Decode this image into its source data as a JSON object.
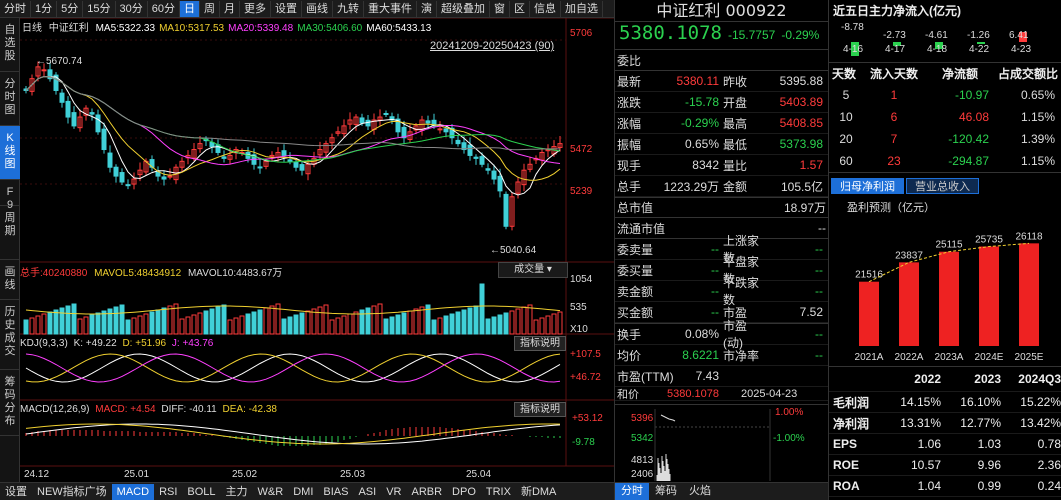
{
  "toolbar": {
    "items": [
      "分时",
      "1分",
      "5分",
      "15分",
      "30分",
      "60分",
      "日",
      "周",
      "月",
      "更多",
      "设置",
      "画线",
      "九转",
      "重大事件",
      "演",
      "超级叠加",
      "窗",
      "区",
      "信息",
      "加自选"
    ],
    "active_index": 6
  },
  "vtabs": [
    {
      "label": "自选股",
      "active": false
    },
    {
      "label": "分时图",
      "active": false
    },
    {
      "label": "K线图",
      "active": true
    },
    {
      "label": "F9",
      "active": false
    },
    {
      "label": "周期",
      "active": false
    },
    {
      "label": "画线",
      "active": false
    },
    {
      "label": "历史成交",
      "active": false
    },
    {
      "label": "筹码分布",
      "active": false
    }
  ],
  "main": {
    "period": "日线",
    "name": "中证红利",
    "ma": [
      {
        "label": "MA5:",
        "value": "5322.33",
        "color": "#ffffff"
      },
      {
        "label": "MA10:",
        "value": "5317.53",
        "color": "#f0d030"
      },
      {
        "label": "MA20:",
        "value": "5339.48",
        "color": "#ff40ff"
      },
      {
        "label": "MA30:",
        "value": "5406.60",
        "color": "#2bd14f"
      },
      {
        "label": "MA60:",
        "value": "5433.13",
        "color": "#ffffff"
      }
    ],
    "range_label": "20241209-20250423 (90)",
    "hi_marker": "5670.74",
    "lo_marker": "5040.64",
    "y_labels": [
      "5706",
      "5472",
      "5239"
    ],
    "vol_header": {
      "label": "总手:",
      "value": "40240880",
      "mavol5_label": "MAVOL5:",
      "mavol5": "48434912",
      "mavol10_label": "MAVOL10:",
      "mavol10": "4483.67万"
    },
    "vol_dropdown": "成交量",
    "vol_y": [
      "1054",
      "535",
      "X10"
    ],
    "kdj_header": {
      "label": "KDJ(9,3,3)",
      "k": "K: +49.22",
      "d": "D: +51.96",
      "j": "J: +43.76"
    },
    "kdj_y": [
      "+107.5",
      "+46.72"
    ],
    "indicator_btn": "指标说明",
    "macd_header": {
      "label": "MACD(12,26,9)",
      "macd": "MACD: +4.54",
      "diff": "DIFF: -40.11",
      "dea": "DEA: -42.38"
    },
    "macd_y": [
      "+53.12",
      "-9.78"
    ],
    "x_labels": [
      "24.12",
      "25.01",
      "25.02",
      "25.03",
      "25.04"
    ]
  },
  "chart_data": {
    "type": "candlestick",
    "closes": [
      5560,
      5600,
      5640,
      5630,
      5600,
      5560,
      5520,
      5470,
      5440,
      5470,
      5500,
      5480,
      5420,
      5360,
      5300,
      5270,
      5250,
      5240,
      5260,
      5290,
      5320,
      5300,
      5270,
      5260,
      5270,
      5300,
      5320,
      5340,
      5360,
      5380,
      5390,
      5370,
      5350,
      5330,
      5340,
      5360,
      5350,
      5330,
      5310,
      5300,
      5320,
      5340,
      5350,
      5340,
      5320,
      5300,
      5290,
      5310,
      5330,
      5360,
      5380,
      5400,
      5420,
      5440,
      5460,
      5470,
      5450,
      5440,
      5460,
      5470,
      5480,
      5460,
      5420,
      5400,
      5420,
      5440,
      5460,
      5450,
      5440,
      5430,
      5420,
      5400,
      5380,
      5360,
      5340,
      5330,
      5310,
      5290,
      5260,
      5220,
      5100,
      5200,
      5250,
      5290,
      5310,
      5330,
      5350,
      5360,
      5370,
      5380
    ]
  },
  "quote": {
    "title": "中证红利 000922",
    "price": "5380.1078",
    "change": "-15.7757",
    "pct": "-0.29%",
    "weibi": "委比",
    "rows": [
      {
        "a": "最新",
        "av": "5380.11",
        "ac": "#ff3b3b",
        "b": "昨收",
        "bv": "5395.88",
        "bc": "#dddddd"
      },
      {
        "a": "涨跌",
        "av": "-15.78",
        "ac": "#2bd14f",
        "b": "开盘",
        "bv": "5403.89",
        "bc": "#ff3b3b"
      },
      {
        "a": "涨幅",
        "av": "-0.29%",
        "ac": "#2bd14f",
        "b": "最高",
        "bv": "5408.85",
        "bc": "#ff3b3b"
      },
      {
        "a": "振幅",
        "av": "0.65%",
        "ac": "#dddddd",
        "b": "最低",
        "bv": "5373.98",
        "bc": "#2bd14f"
      },
      {
        "a": "现手",
        "av": "8342",
        "ac": "#dddddd",
        "b": "量比",
        "bv": "1.57",
        "bc": "#ff3b3b"
      },
      {
        "a": "总手",
        "av": "1223.29万",
        "ac": "#dddddd",
        "b": "金额",
        "bv": "105.5亿",
        "bc": "#dddddd"
      }
    ],
    "zsz_label": "总市值",
    "zsz": "18.97万",
    "ltsz_label": "流通市值",
    "ltsz": "--",
    "rows2": [
      {
        "a": "委卖量",
        "av": "--",
        "b": "上涨家数",
        "bv": "--"
      },
      {
        "a": "委买量",
        "av": "--",
        "b": "平盘家数",
        "bv": "--"
      },
      {
        "a": "卖金额",
        "av": "--",
        "b": "下跌家数",
        "bv": "--"
      },
      {
        "a": "买金额",
        "av": "--",
        "b": "市盈",
        "bv": "7.52"
      }
    ],
    "rows3": [
      {
        "a": "换手",
        "av": "0.08%",
        "ac": "#dddddd",
        "b": "市盈(动)",
        "bv": "--"
      },
      {
        "a": "均价",
        "av": "8.6221",
        "ac": "#2bd14f",
        "b": "市净率",
        "bv": "--"
      }
    ],
    "pe_ttm_label": "市盈(TTM)",
    "pe_ttm": "7.43",
    "cut_label": "和价",
    "cut_value": "5380.1078",
    "cut_date": "2025-04-23",
    "mini_y": [
      "5396",
      "5342",
      "4813",
      "2406"
    ],
    "mini_pct": [
      "1.00%",
      "-1.00%"
    ],
    "tabs": [
      "分时",
      "筹码",
      "火焰"
    ]
  },
  "side": {
    "flow_title": "近五日主力净流入(亿元)",
    "flow_values": [
      "-8.78",
      "-2.73",
      "-4.61",
      "-1.26",
      "6.41"
    ],
    "flow_dates": [
      "4-16",
      "4-17",
      "4-18",
      "4-22",
      "4-23"
    ],
    "table_headers": [
      "天数",
      "流入天数",
      "净流额",
      "占成交额比"
    ],
    "table_rows": [
      {
        "d": "5",
        "in": "1",
        "net": "-10.97",
        "pct": "0.65%"
      },
      {
        "d": "10",
        "in": "6",
        "net": "46.08",
        "pct": "1.15%"
      },
      {
        "d": "20",
        "in": "7",
        "net": "-120.42",
        "pct": "1.39%"
      },
      {
        "d": "60",
        "in": "23",
        "net": "-294.87",
        "pct": "1.15%"
      }
    ],
    "tabs": [
      "归母净利润",
      "营业总收入"
    ],
    "forecast_title": "盈利预测（亿元）",
    "forecast": {
      "categories": [
        "2021A",
        "2022A",
        "2023A",
        "2024E",
        "2025E"
      ],
      "values": [
        21516,
        23837,
        25115,
        25735,
        26118
      ]
    },
    "fin_headers": [
      "2022",
      "2023",
      "2024Q3"
    ],
    "fin_rows": [
      {
        "n": "毛利润",
        "v": [
          "14.15%",
          "16.10%",
          "15.22%"
        ]
      },
      {
        "n": "净利润",
        "v": [
          "13.31%",
          "12.77%",
          "13.42%"
        ]
      },
      {
        "n": "EPS",
        "v": [
          "1.06",
          "1.03",
          "0.78"
        ]
      },
      {
        "n": "ROE",
        "v": [
          "10.57",
          "9.96",
          "2.36"
        ]
      },
      {
        "n": "ROA",
        "v": [
          "1.04",
          "0.99",
          "0.24"
        ]
      }
    ]
  },
  "bottom": {
    "items": [
      "设置",
      "NEW指标广场",
      "MACD",
      "RSI",
      "BOLL",
      "主力",
      "W&R",
      "DMI",
      "BIAS",
      "ASI",
      "VR",
      "ARBR",
      "DPO",
      "TRIX",
      "新DMA"
    ],
    "active_index": 2
  }
}
